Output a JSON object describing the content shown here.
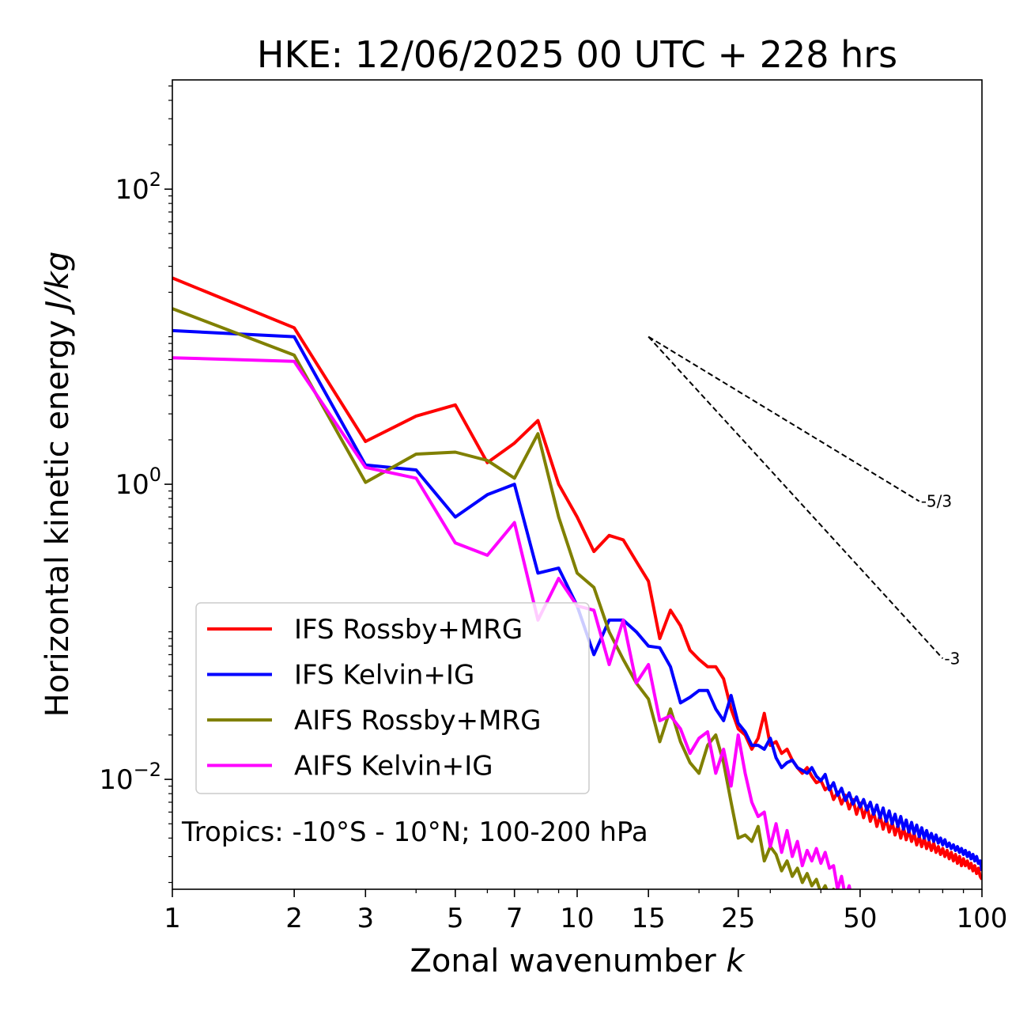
{
  "chart_data": {
    "type": "line",
    "title": "HKE: 12/06/2025 00 UTC + 228 hrs",
    "xlabel_main": "Zonal wavenumber ",
    "xlabel_var": "k",
    "ylabel_main": "Horizontal kinetic energy ",
    "ylabel_unit": "J/kg",
    "xscale": "log",
    "yscale": "log",
    "xlim": [
      1,
      100
    ],
    "ylim": [
      0.0018,
      550
    ],
    "grid": false,
    "legend_position": "lower-left",
    "x_ticks": [
      {
        "value": 1,
        "label": "1"
      },
      {
        "value": 2,
        "label": "2"
      },
      {
        "value": 3,
        "label": "3"
      },
      {
        "value": 5,
        "label": "5"
      },
      {
        "value": 7,
        "label": "7"
      },
      {
        "value": 10,
        "label": "10"
      },
      {
        "value": 15,
        "label": "15"
      },
      {
        "value": 25,
        "label": "25"
      },
      {
        "value": 50,
        "label": "50"
      },
      {
        "value": 100,
        "label": "100"
      }
    ],
    "y_ticks": [
      {
        "value": 100,
        "base": "10",
        "exp": "2"
      },
      {
        "value": 1,
        "base": "10",
        "exp": "0"
      },
      {
        "value": 0.01,
        "base": "10",
        "exp": "−2"
      }
    ],
    "annotation": "Tropics: -10°S - 10°N; 100-200 hPa",
    "reference_lines": [
      {
        "label": "-5/3",
        "slope": -1.6667,
        "x0": 15,
        "y0": 10,
        "x1": 70
      },
      {
        "label": "-3",
        "slope": -3,
        "x0": 15,
        "y0": 10,
        "x1": 80
      }
    ],
    "series": [
      {
        "name": "IFS Rossby+MRG",
        "color": "#ff0000",
        "x": [
          1,
          2,
          3,
          4,
          5,
          6,
          7,
          8,
          9,
          10,
          11,
          12,
          13,
          14,
          15,
          16,
          17,
          18,
          19,
          20,
          21,
          22,
          23,
          24,
          25,
          26,
          27,
          28,
          29,
          30,
          31,
          32,
          33,
          34,
          35,
          36,
          37,
          38,
          39,
          40,
          41,
          42,
          43,
          44,
          45,
          46,
          47,
          48,
          49,
          50,
          51,
          52,
          53,
          54,
          55,
          56,
          57,
          58,
          59,
          60,
          61,
          62,
          63,
          64,
          65,
          66,
          67,
          68,
          69,
          70,
          71,
          72,
          73,
          74,
          75,
          76,
          77,
          78,
          79,
          80,
          81,
          82,
          83,
          84,
          85,
          86,
          87,
          88,
          89,
          90,
          91,
          92,
          93,
          94,
          95,
          96,
          97,
          98,
          99,
          100
        ],
        "y": [
          25,
          11.5,
          1.95,
          2.9,
          3.45,
          1.4,
          1.9,
          2.7,
          1.0,
          0.6,
          0.35,
          0.45,
          0.42,
          0.3,
          0.22,
          0.09,
          0.14,
          0.11,
          0.075,
          0.065,
          0.058,
          0.058,
          0.048,
          0.03,
          0.022,
          0.02,
          0.016,
          0.019,
          0.028,
          0.017,
          0.018,
          0.015,
          0.016,
          0.0135,
          0.012,
          0.011,
          0.012,
          0.0105,
          0.0095,
          0.0098,
          0.0085,
          0.009,
          0.0073,
          0.0082,
          0.0068,
          0.0078,
          0.0063,
          0.0073,
          0.0058,
          0.0069,
          0.0055,
          0.0066,
          0.0052,
          0.006,
          0.0048,
          0.0057,
          0.0046,
          0.0054,
          0.0044,
          0.0051,
          0.0042,
          0.0049,
          0.004,
          0.0047,
          0.0039,
          0.0045,
          0.0038,
          0.0043,
          0.0036,
          0.0041,
          0.0035,
          0.004,
          0.0034,
          0.0038,
          0.0033,
          0.0037,
          0.0032,
          0.0035,
          0.0031,
          0.0034,
          0.003,
          0.0033,
          0.0029,
          0.0032,
          0.0028,
          0.0031,
          0.0027,
          0.003,
          0.0026,
          0.0029,
          0.0026,
          0.0028,
          0.0025,
          0.0027,
          0.0024,
          0.0026,
          0.0023,
          0.0025,
          0.0022,
          0.0021
        ]
      },
      {
        "name": "IFS Kelvin+IG",
        "color": "#0000ff",
        "x": [
          1,
          2,
          3,
          4,
          5,
          6,
          7,
          8,
          9,
          10,
          11,
          12,
          13,
          14,
          15,
          16,
          17,
          18,
          19,
          20,
          21,
          22,
          23,
          24,
          25,
          26,
          27,
          28,
          29,
          30,
          31,
          32,
          33,
          34,
          35,
          36,
          37,
          38,
          39,
          40,
          41,
          42,
          43,
          44,
          45,
          46,
          47,
          48,
          49,
          50,
          51,
          52,
          53,
          54,
          55,
          56,
          57,
          58,
          59,
          60,
          61,
          62,
          63,
          64,
          65,
          66,
          67,
          68,
          69,
          70,
          71,
          72,
          73,
          74,
          75,
          76,
          77,
          78,
          79,
          80,
          81,
          82,
          83,
          84,
          85,
          86,
          87,
          88,
          89,
          90,
          91,
          92,
          93,
          94,
          95,
          96,
          97,
          98,
          99,
          100
        ],
        "y": [
          11,
          10,
          1.35,
          1.25,
          0.6,
          0.85,
          1.0,
          0.25,
          0.27,
          0.15,
          0.07,
          0.12,
          0.12,
          0.1,
          0.08,
          0.078,
          0.058,
          0.033,
          0.036,
          0.04,
          0.04,
          0.03,
          0.025,
          0.037,
          0.024,
          0.021,
          0.017,
          0.017,
          0.016,
          0.019,
          0.014,
          0.012,
          0.013,
          0.0135,
          0.012,
          0.0115,
          0.011,
          0.012,
          0.0105,
          0.0098,
          0.0108,
          0.0085,
          0.0095,
          0.0078,
          0.0087,
          0.0072,
          0.0081,
          0.0068,
          0.0076,
          0.0065,
          0.0073,
          0.0062,
          0.007,
          0.0058,
          0.0067,
          0.0055,
          0.0064,
          0.0052,
          0.0061,
          0.005,
          0.0058,
          0.0048,
          0.0056,
          0.0046,
          0.0053,
          0.0044,
          0.0051,
          0.0043,
          0.0049,
          0.0041,
          0.0047,
          0.004,
          0.0045,
          0.0039,
          0.0043,
          0.0038,
          0.0042,
          0.0037,
          0.004,
          0.0036,
          0.0039,
          0.0035,
          0.0037,
          0.0034,
          0.0036,
          0.0033,
          0.0035,
          0.0032,
          0.0034,
          0.0031,
          0.0033,
          0.003,
          0.0032,
          0.0029,
          0.0031,
          0.0028,
          0.003,
          0.0027,
          0.0028,
          0.0024
        ]
      },
      {
        "name": "AIFS Rossby+MRG",
        "color": "#808000",
        "x": [
          1,
          2,
          3,
          4,
          5,
          6,
          7,
          8,
          9,
          10,
          11,
          12,
          13,
          14,
          15,
          16,
          17,
          18,
          19,
          20,
          21,
          22,
          23,
          24,
          25,
          26,
          27,
          28,
          29,
          30,
          31,
          32,
          33,
          34,
          35,
          36,
          37,
          38,
          39,
          40,
          41,
          42,
          43,
          44,
          45,
          46,
          47,
          48,
          49
        ],
        "y": [
          15.5,
          7.5,
          1.03,
          1.6,
          1.65,
          1.45,
          1.1,
          2.2,
          0.6,
          0.25,
          0.2,
          0.1,
          0.065,
          0.045,
          0.035,
          0.018,
          0.03,
          0.018,
          0.013,
          0.011,
          0.017,
          0.02,
          0.013,
          0.007,
          0.004,
          0.0042,
          0.0038,
          0.0048,
          0.0028,
          0.0035,
          0.0031,
          0.0024,
          0.0028,
          0.0022,
          0.0025,
          0.002,
          0.0023,
          0.0019,
          0.0021,
          0.0017,
          0.0019,
          0.0016,
          0.0018,
          0.0015,
          0.0016,
          0.0014,
          0.0015,
          0.0013,
          0.0012
        ]
      },
      {
        "name": "AIFS Kelvin+IG",
        "color": "#ff00ff",
        "x": [
          1,
          2,
          3,
          4,
          5,
          6,
          7,
          8,
          9,
          10,
          11,
          12,
          13,
          14,
          15,
          16,
          17,
          18,
          19,
          20,
          21,
          22,
          23,
          24,
          25,
          26,
          27,
          28,
          29,
          30,
          31,
          32,
          33,
          34,
          35,
          36,
          37,
          38,
          39,
          40,
          41,
          42,
          43,
          44,
          45,
          46,
          47,
          48,
          49,
          50,
          51,
          52,
          53,
          54,
          55
        ],
        "y": [
          7.2,
          6.8,
          1.3,
          1.1,
          0.4,
          0.33,
          0.55,
          0.12,
          0.23,
          0.15,
          0.14,
          0.06,
          0.12,
          0.045,
          0.06,
          0.025,
          0.027,
          0.022,
          0.015,
          0.019,
          0.021,
          0.011,
          0.016,
          0.009,
          0.02,
          0.011,
          0.007,
          0.0056,
          0.006,
          0.0035,
          0.005,
          0.0032,
          0.0045,
          0.003,
          0.0038,
          0.0026,
          0.0033,
          0.0028,
          0.0034,
          0.0027,
          0.0032,
          0.0025,
          0.0026,
          0.0018,
          0.0022,
          0.0016,
          0.0019,
          0.0014,
          0.0016,
          0.0012,
          0.0014,
          0.0011,
          0.0013,
          0.001,
          0.0012
        ]
      }
    ]
  }
}
